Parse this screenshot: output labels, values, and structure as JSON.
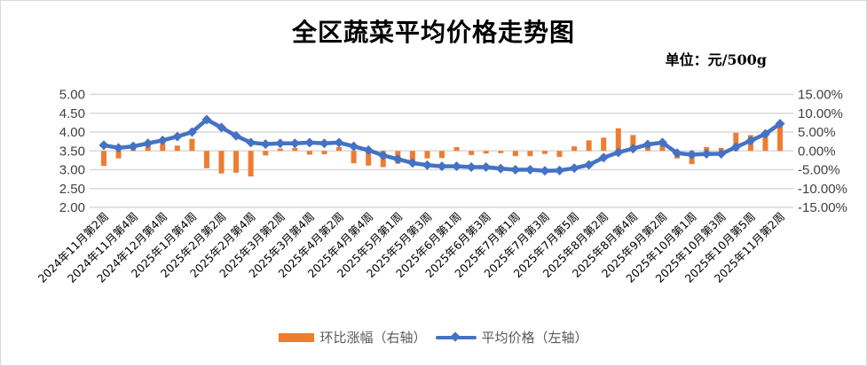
{
  "title": "全区蔬菜平均价格走势图",
  "unit": "单位：元/500g",
  "legend": {
    "bar": "环比涨幅（右轴）",
    "line": "平均价格（左轴）"
  },
  "colors": {
    "bar": "#ED7D31",
    "line": "#4472C4",
    "grid": "#d9d9d9"
  },
  "chart_data": {
    "type": "bar+line",
    "title": "全区蔬菜平均价格走势图",
    "subtitle": "单位：元/500g",
    "left_axis": {
      "label": "平均价格（左轴）",
      "ylim": [
        2.0,
        5.0
      ],
      "ticks": [
        "5.00",
        "4.50",
        "4.00",
        "3.50",
        "3.00",
        "2.50",
        "2.00"
      ]
    },
    "right_axis": {
      "label": "环比涨幅（右轴）",
      "ylim": [
        -15,
        15
      ],
      "ticks": [
        "15.00%",
        "10.00%",
        "5.00%",
        "0.00%",
        "-5.00%",
        "-10.00%",
        "-15.00%"
      ]
    },
    "x_tick_labels": [
      "2024年11月第2周",
      "2024年11月第4周",
      "2024年12月第4周",
      "2025年1月第4周",
      "2025年2月第2周",
      "2025年2月第4周",
      "2025年3月第2周",
      "2025年3月第4周",
      "2025年4月第2周",
      "2025年4月第4周",
      "2025年5月第1周",
      "2025年5月第3周",
      "2025年6月第1周",
      "2025年6月第3周",
      "2025年7月第1周",
      "2025年7月第3周",
      "2025年7月第5周",
      "2025年8月第2周",
      "2025年8月第4周",
      "2025年9月第2周",
      "2025年10月第1周",
      "2025年10月第3周",
      "2025年10月第5周",
      "2025年11月第2周"
    ],
    "grid": true,
    "legend_position": "bottom",
    "series": [
      {
        "name": "环比涨幅（右轴）",
        "type": "bar",
        "axis": "right",
        "unit": "%",
        "values": [
          -4.0,
          -2.0,
          1.0,
          1.6,
          2.0,
          1.4,
          3.2,
          -4.6,
          -6.0,
          -5.8,
          -6.8,
          -1.2,
          0.6,
          0.8,
          -1.0,
          -0.9,
          1.0,
          -3.3,
          -3.9,
          -4.3,
          -3.4,
          -3.3,
          -2.0,
          -1.9,
          1.0,
          -1.1,
          -0.7,
          -0.6,
          -1.4,
          -1.4,
          -0.8,
          -1.6,
          1.2,
          2.8,
          3.5,
          6.0,
          4.2,
          2.2,
          2.8,
          -2.0,
          -3.5,
          1.0,
          0.8,
          4.8,
          4.2,
          4.2,
          7.0
        ]
      },
      {
        "name": "平均价格（左轴）",
        "type": "line",
        "axis": "left",
        "unit": "元/500g",
        "values": [
          3.65,
          3.58,
          3.62,
          3.7,
          3.78,
          3.88,
          4.0,
          4.33,
          4.12,
          3.9,
          3.72,
          3.68,
          3.7,
          3.7,
          3.72,
          3.7,
          3.72,
          3.62,
          3.52,
          3.38,
          3.28,
          3.18,
          3.12,
          3.09,
          3.09,
          3.07,
          3.07,
          3.03,
          3.0,
          3.0,
          2.97,
          2.98,
          3.04,
          3.13,
          3.32,
          3.46,
          3.56,
          3.67,
          3.72,
          3.44,
          3.4,
          3.42,
          3.42,
          3.6,
          3.77,
          3.95,
          4.22
        ]
      }
    ]
  }
}
